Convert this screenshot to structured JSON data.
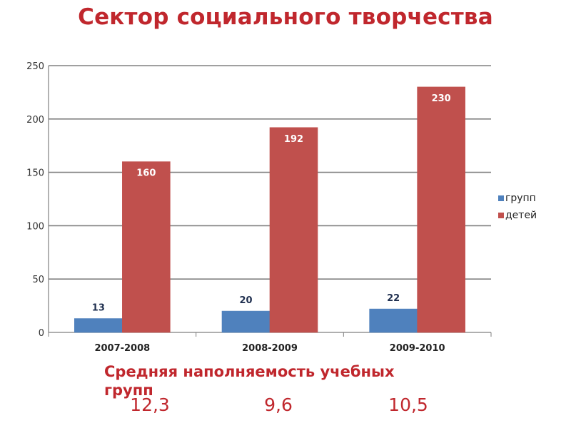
{
  "title": "Сектор социального творчества",
  "caption": "Средняя наполняемость учебных групп",
  "averages": [
    "12,3",
    "9,6",
    "10,5"
  ],
  "chart_data": {
    "type": "bar",
    "categories": [
      "2007-2008",
      "2008-2009",
      "2009-2010"
    ],
    "series": [
      {
        "name": "групп",
        "values": [
          13,
          20,
          22
        ],
        "color": "#4f81bd"
      },
      {
        "name": "детей",
        "values": [
          160,
          192,
          230
        ],
        "color": "#c0504d"
      }
    ],
    "ylim": [
      0,
      250
    ],
    "yticks": [
      0,
      50,
      100,
      150,
      200,
      250
    ],
    "grid": true,
    "legend": "right"
  }
}
